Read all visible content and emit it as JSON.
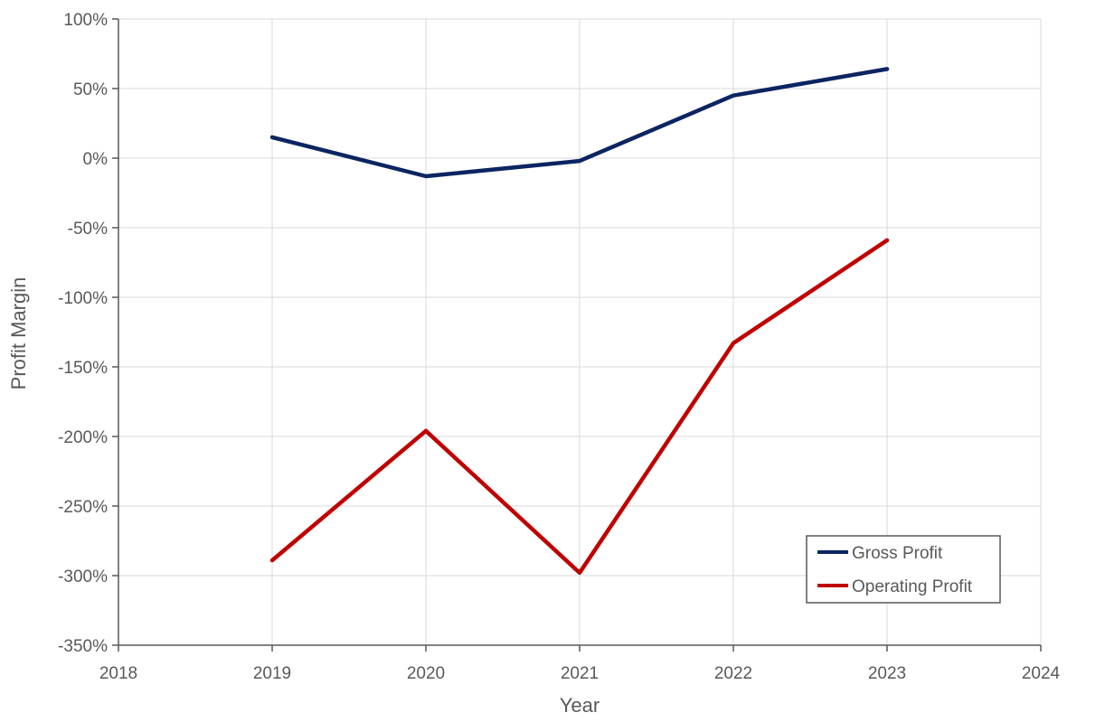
{
  "chart_data": {
    "type": "line",
    "title": "",
    "xlabel": "Year",
    "ylabel": "Profit Margin",
    "xlim": [
      2018,
      2024
    ],
    "ylim": [
      -350,
      100
    ],
    "x_ticks": [
      "2018",
      "2019",
      "2020",
      "2021",
      "2022",
      "2023",
      "2024"
    ],
    "y_ticks": [
      "100%",
      "50%",
      "0%",
      "-50%",
      "-100%",
      "-150%",
      "-200%",
      "-250%",
      "-300%",
      "-350%"
    ],
    "x": [
      2019,
      2020,
      2021,
      2022,
      2023
    ],
    "series": [
      {
        "name": "Gross Profit",
        "color": "#0c2461",
        "values": [
          15,
          -13,
          -2,
          45,
          64
        ]
      },
      {
        "name": "Operating Profit",
        "color": "#c00000",
        "values": [
          -289,
          -196,
          -298,
          -133,
          -59
        ]
      }
    ],
    "grid": true,
    "legend_position": "bottom-right"
  }
}
